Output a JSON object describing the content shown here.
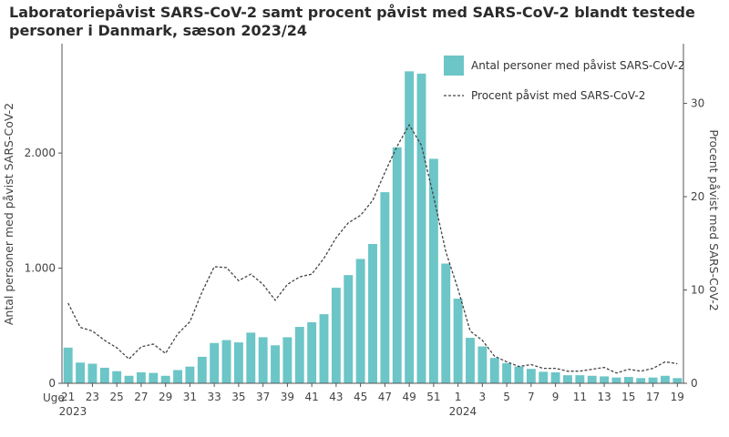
{
  "title": "Laboratoriepåvist SARS-CoV-2 samt procent påvist med SARS-CoV-2 blandt testede personer i Danmark, sæson 2023/24",
  "colors": {
    "bar": "#6cc5c7",
    "line": "#444444",
    "axis": "#555555"
  },
  "chart_data": {
    "type": "bar",
    "title": "Laboratoriepåvist SARS-CoV-2 samt procent påvist med SARS-CoV-2 blandt testede personer i Danmark, sæson 2023/24",
    "xlabel": "Uge",
    "ylabel": "Antal personer med påvist SARS-CoV-2",
    "y2label": "Procent påvist med SARS-CoV-2",
    "ylim": [
      0,
      2950
    ],
    "y2lim": [
      0,
      36.4
    ],
    "yticks": [
      0,
      1000,
      2000
    ],
    "yticklabels": [
      "0",
      "1.000",
      "2.000"
    ],
    "y2ticks": [
      0,
      10,
      20,
      30
    ],
    "y2ticklabels": [
      "0",
      "10",
      "20",
      "30"
    ],
    "legend_position": "top-right",
    "grid": false,
    "categories": [
      "21",
      "22",
      "23",
      "24",
      "25",
      "26",
      "27",
      "28",
      "29",
      "30",
      "31",
      "32",
      "33",
      "34",
      "35",
      "36",
      "37",
      "38",
      "39",
      "40",
      "41",
      "42",
      "43",
      "44",
      "45",
      "46",
      "47",
      "48",
      "49",
      "50",
      "51",
      "52",
      "1",
      "2",
      "3",
      "4",
      "5",
      "6",
      "7",
      "8",
      "9",
      "10",
      "11",
      "12",
      "13",
      "14",
      "15",
      "16",
      "17",
      "18",
      "19"
    ],
    "xtick_labels": [
      "21",
      "23",
      "25",
      "27",
      "29",
      "31",
      "33",
      "35",
      "37",
      "39",
      "41",
      "43",
      "45",
      "47",
      "49",
      "51",
      "1",
      "3",
      "5",
      "7",
      "9",
      "11",
      "13",
      "15",
      "17",
      "19"
    ],
    "year_labels": [
      {
        "week": "21",
        "label": "2023"
      },
      {
        "week": "1",
        "label": "2024"
      }
    ],
    "series": [
      {
        "name": "Antal personer med påvist SARS-CoV-2",
        "kind": "bar",
        "values": [
          310,
          180,
          170,
          135,
          105,
          65,
          95,
          90,
          65,
          115,
          145,
          230,
          350,
          375,
          355,
          440,
          400,
          330,
          400,
          490,
          530,
          600,
          830,
          940,
          1080,
          1210,
          1660,
          2050,
          2710,
          2690,
          1950,
          1040,
          735,
          395,
          320,
          220,
          175,
          145,
          125,
          100,
          95,
          70,
          70,
          65,
          60,
          50,
          55,
          45,
          50,
          65,
          45
        ]
      },
      {
        "name": "Procent påvist med SARS-CoV-2",
        "kind": "line",
        "values": [
          8.6,
          6.0,
          5.6,
          4.6,
          3.8,
          2.6,
          3.9,
          4.2,
          3.2,
          5.3,
          6.6,
          9.8,
          12.5,
          12.4,
          11.0,
          11.7,
          10.6,
          8.9,
          10.6,
          11.4,
          11.7,
          13.4,
          15.6,
          17.2,
          18.0,
          19.6,
          22.6,
          25.4,
          27.7,
          25.5,
          20.0,
          14.1,
          10.1,
          5.6,
          4.6,
          2.9,
          2.3,
          1.8,
          2.0,
          1.6,
          1.6,
          1.3,
          1.3,
          1.5,
          1.7,
          1.1,
          1.5,
          1.3,
          1.6,
          2.3,
          2.1
        ]
      }
    ]
  }
}
